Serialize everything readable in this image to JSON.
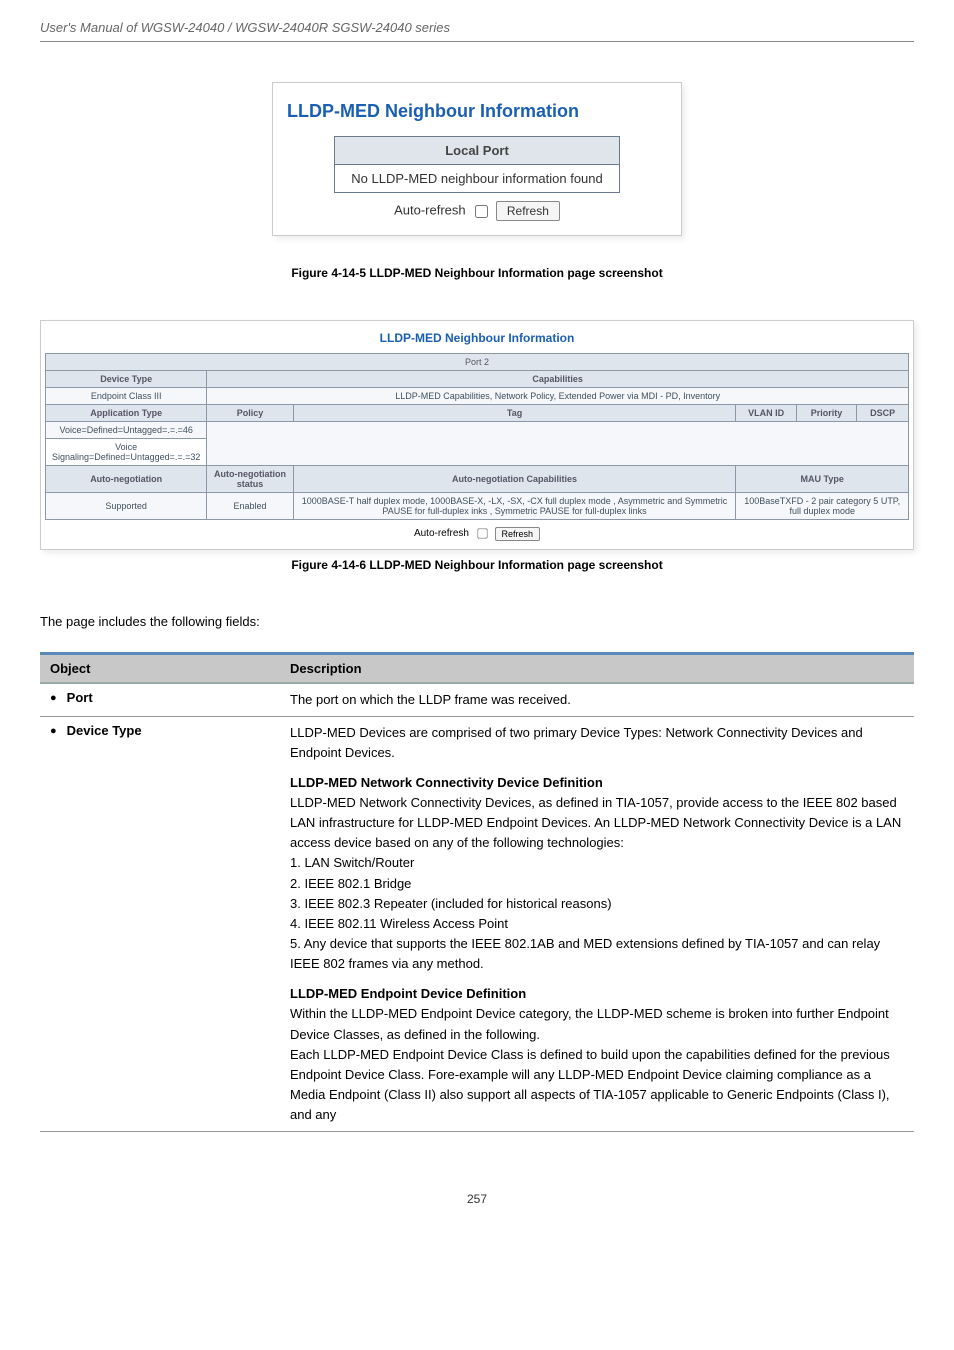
{
  "header": {
    "ug_text": "User's Manual of WGSW-24040 / WGSW-24040R SGSW-24040 series"
  },
  "screenshot1": {
    "title": "LLDP-MED Neighbour Information",
    "local_port_hdr": "Local Port",
    "no_info": "No LLDP-MED neighbour information found",
    "autorefresh_label": "Auto-refresh",
    "refresh_btn": "Refresh"
  },
  "figcap1": "Figure 4-14-5 LLDP-MED Neighbour Information page screenshot",
  "screenshot2": {
    "title": "LLDP-MED Neighbour Information",
    "port_row": "Port 2",
    "dev_type_hdr": "Device Type",
    "caps_hdr": "Capabilities",
    "endpoint": "Endpoint Class III",
    "caps_val": "LLDP-MED Capabilities, Network Policy, Extended Power via MDI - PD, Inventory",
    "apptype_hdr": "Application Type",
    "policy_hdr": "Policy",
    "tag_hdr": "Tag",
    "vlan_hdr": "VLAN ID",
    "pri_hdr": "Priority",
    "dscp_hdr": "DSCP",
    "r1c1": "Voice=Defined=Untagged=.=.=46",
    "r2c1": "Voice Signaling=Defined=Untagged=.=.=32",
    "an_hdr": "Auto-negotiation",
    "an_status_hdr": "Auto-negotiation status",
    "an_caps_hdr": "Auto-negotiation Capabilities",
    "mau_hdr": "MAU Type",
    "an_supported": "Supported",
    "an_enabled": "Enabled",
    "an_caps_val": "1000BASE-T half duplex mode, 1000BASE-X, -LX, -SX, -CX full duplex mode , Asymmetric and Symmetric PAUSE for full-duplex inks , Symmetric PAUSE for full-duplex links",
    "mau_val": "100BaseTXFD - 2 pair category 5 UTP, full duplex mode",
    "autorefresh_label": "Auto-refresh",
    "refresh_btn": "Refresh"
  },
  "figcap2": "Figure 4-14-6 LLDP-MED Neighbour Information page screenshot",
  "body_text": "The page includes the following fields:",
  "desc_table": {
    "h1": "Object",
    "h2": "Description",
    "rows": [
      {
        "obj": "Port",
        "dsc": "The port on which the LLDP frame was received."
      },
      {
        "obj": "Device Type",
        "dsc_html": "LLDP-MED Devices are comprised of two primary Device Types: Network Connectivity Devices and Endpoint Devices.<div class='dsc-block'></div><b>LLDP-MED Network Connectivity Device Definition</b><br>LLDP-MED Network Connectivity Devices, as defined in TIA-1057, provide access to the IEEE 802 based LAN infrastructure for LLDP-MED Endpoint Devices. An LLDP-MED Network Connectivity Device is a LAN access device based on any of the following technologies:<br>1. LAN Switch/Router<br>2. IEEE 802.1 Bridge<br>3. IEEE 802.3 Repeater (included for historical reasons)<br>4. IEEE 802.11 Wireless Access Point<br>5. Any device that supports the IEEE 802.1AB and MED extensions defined by TIA-1057 and can relay IEEE 802 frames via any method.<div class='dsc-block'></div><b>LLDP-MED Endpoint Device Definition</b><br>Within the LLDP-MED Endpoint Device category, the LLDP-MED scheme is broken into further Endpoint Device Classes, as defined in the following.<br>Each LLDP-MED Endpoint Device Class is defined to build upon the capabilities defined for the previous Endpoint Device Class. Fore-example will any LLDP-MED Endpoint Device claiming compliance as a Media Endpoint (Class II) also support all aspects of TIA-1057 applicable to Generic Endpoints (Class I), and any"
      }
    ]
  },
  "footer": {
    "page": "257"
  }
}
